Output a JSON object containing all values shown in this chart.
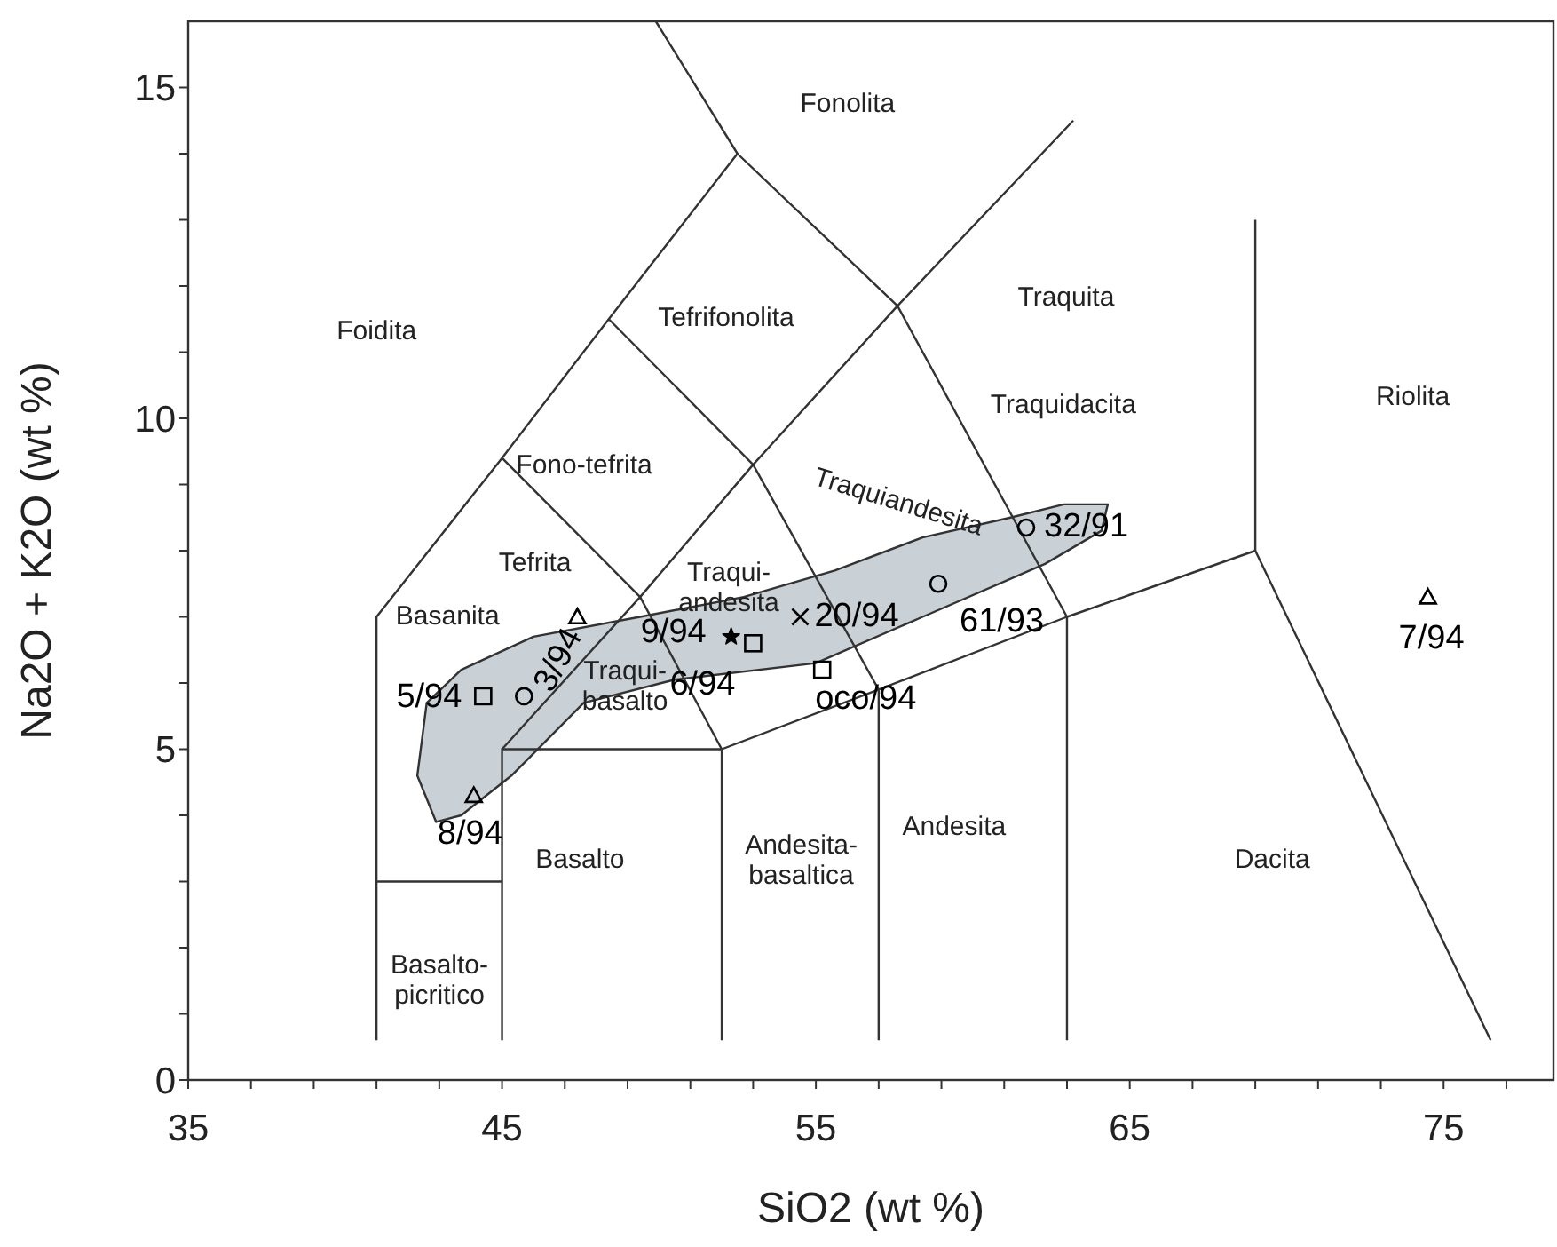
{
  "chart_data": {
    "type": "scatter",
    "xlabel": "SiO2 (wt %)",
    "ylabel": "Na2O + K2O (wt %)",
    "xlim": [
      35,
      78.5
    ],
    "ylim": [
      0,
      16
    ],
    "xticks": [
      35,
      {
        "value": 37,
        "label": null
      },
      {
        "value": 39,
        "label": null
      },
      {
        "value": 41,
        "label": null
      },
      {
        "value": 43,
        "label": null
      },
      45,
      {
        "value": 47,
        "label": null
      },
      {
        "value": 49,
        "label": null
      },
      {
        "value": 51,
        "label": null
      },
      {
        "value": 53,
        "label": null
      },
      55,
      {
        "value": 57,
        "label": null
      },
      {
        "value": 59,
        "label": null
      },
      {
        "value": 61,
        "label": null
      },
      {
        "value": 63,
        "label": null
      },
      65,
      {
        "value": 67,
        "label": null
      },
      {
        "value": 69,
        "label": null
      },
      {
        "value": 71,
        "label": null
      },
      {
        "value": 73,
        "label": null
      },
      75,
      {
        "value": 77,
        "label": null
      }
    ],
    "yticks": [
      0,
      {
        "value": 1,
        "label": null
      },
      {
        "value": 2,
        "label": null
      },
      {
        "value": 3,
        "label": null
      },
      {
        "value": 4,
        "label": null
      },
      5,
      {
        "value": 6,
        "label": null
      },
      {
        "value": 7,
        "label": null
      },
      {
        "value": 8,
        "label": null
      },
      {
        "value": 9,
        "label": null
      },
      10,
      {
        "value": 11,
        "label": null
      },
      {
        "value": 12,
        "label": null
      },
      {
        "value": 13,
        "label": null
      },
      {
        "value": 14,
        "label": null
      },
      15
    ],
    "grid": false,
    "legend": false,
    "series": [
      {
        "type": "line",
        "color": "#333333",
        "line_style": "solid",
        "x": [
          41,
          41,
          45,
          48.4,
          52.5,
          49.9
        ],
        "values": [
          0.6,
          7,
          9.4,
          11.5,
          14,
          16
        ]
      },
      {
        "type": "line",
        "color": "#333333",
        "line_style": "solid",
        "x": [
          41,
          45
        ],
        "values": [
          3,
          3
        ]
      },
      {
        "type": "line",
        "color": "#333333",
        "line_style": "solid",
        "x": [
          45,
          45,
          52,
          57,
          63,
          69,
          76.5
        ],
        "values": [
          0.6,
          5,
          5,
          5.9,
          7,
          8,
          0.6
        ]
      },
      {
        "type": "line",
        "color": "#333333",
        "line_style": "solid",
        "x": [
          52,
          52
        ],
        "values": [
          0.6,
          5
        ]
      },
      {
        "type": "line",
        "color": "#333333",
        "line_style": "solid",
        "x": [
          57,
          57
        ],
        "values": [
          0.6,
          5.9
        ]
      },
      {
        "type": "line",
        "color": "#333333",
        "line_style": "solid",
        "x": [
          63,
          63
        ],
        "values": [
          0.6,
          7
        ]
      },
      {
        "type": "line",
        "color": "#333333",
        "line_style": "solid",
        "x": [
          69,
          69
        ],
        "values": [
          8,
          13
        ]
      },
      {
        "type": "line",
        "color": "#333333",
        "line_style": "solid",
        "x": [
          45,
          49.4,
          53,
          57.6,
          63.2
        ],
        "values": [
          5,
          7.3,
          9.3,
          11.7,
          14.5
        ]
      },
      {
        "type": "line",
        "color": "#333333",
        "line_style": "solid",
        "x": [
          45,
          49.4,
          52
        ],
        "values": [
          9.4,
          7.3,
          5
        ]
      },
      {
        "type": "line",
        "color": "#333333",
        "line_style": "solid",
        "x": [
          48.4,
          53,
          57
        ],
        "values": [
          11.5,
          9.3,
          5.9
        ]
      },
      {
        "type": "line",
        "color": "#333333",
        "line_style": "solid",
        "x": [
          52.5,
          57.6,
          63
        ],
        "values": [
          14,
          11.7,
          7
        ]
      },
      {
        "type": "area",
        "color": "#c9d0d6",
        "x": [
          43.7,
          45.3,
          47.6,
          50.5,
          55.0,
          58.4,
          62.3,
          64.1,
          64.3,
          62.9,
          61.2,
          58.4,
          55.6,
          52.7,
          49.4,
          46.0,
          43.7,
          42.6,
          42.3,
          42.9
        ],
        "values": [
          4.0,
          4.6,
          5.7,
          6.05,
          6.3,
          7.0,
          7.8,
          8.3,
          8.7,
          8.7,
          8.5,
          8.2,
          7.7,
          7.3,
          7.0,
          6.7,
          6.2,
          5.7,
          4.6,
          3.9
        ]
      },
      {
        "name": "32/91",
        "color": "#000000",
        "marker": "circle",
        "x": [
          61.7
        ],
        "values": [
          8.35
        ]
      },
      {
        "name": "61/93",
        "color": "#000000",
        "marker": "circle",
        "x": [
          58.9
        ],
        "values": [
          7.5
        ]
      },
      {
        "name": "20/94",
        "color": "#000000",
        "marker": "cross",
        "x": [
          54.5
        ],
        "values": [
          7.0
        ]
      },
      {
        "name": "9/94",
        "color": "#000000",
        "marker": "star",
        "x": [
          52.3
        ],
        "values": [
          6.7
        ]
      },
      {
        "name": "6/94",
        "color": "#000000",
        "marker": "square",
        "x": [
          53.0
        ],
        "values": [
          6.6
        ]
      },
      {
        "name": "oco/94",
        "color": "#000000",
        "marker": "square",
        "x": [
          55.2
        ],
        "values": [
          6.2
        ]
      },
      {
        "name": "3/94",
        "color": "#000000",
        "marker": "circle",
        "x": [
          45.7
        ],
        "values": [
          5.8
        ]
      },
      {
        "color": "#000000",
        "marker": "triangle",
        "x": [
          47.4
        ],
        "values": [
          7.0
        ]
      },
      {
        "name": "5/94",
        "color": "#000000",
        "marker": "square",
        "x": [
          44.4
        ],
        "values": [
          5.8
        ]
      },
      {
        "name": "8/94",
        "color": "#000000",
        "marker": "triangle",
        "x": [
          44.1
        ],
        "values": [
          4.3
        ]
      },
      {
        "name": "7/94",
        "color": "#000000",
        "marker": "triangle",
        "x": [
          74.5
        ],
        "values": [
          7.3
        ]
      }
    ],
    "annotations": [
      "Fonolita",
      "Foidita",
      "Tefrifonolita",
      "Traquita",
      "Traquidacita",
      "Riolita",
      "Fono-tefrita",
      "Tefrita",
      "Traqui-\nandesita",
      "Traquiandesita",
      "Basanita",
      "Traqui-\nbasalto",
      "Basalto",
      "Andesita-\nbasaltica",
      "Andesita",
      "Dacita",
      "Basalto-\npicritico"
    ]
  }
}
